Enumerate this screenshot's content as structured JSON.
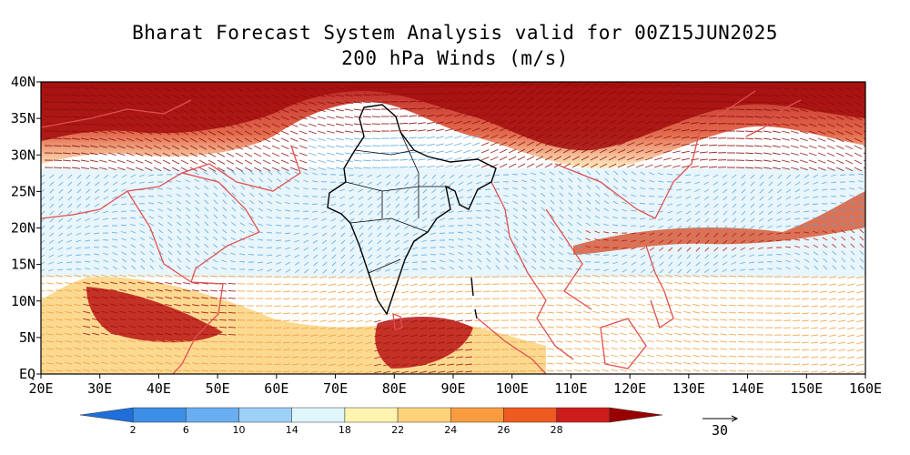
{
  "title": "Bharat Forecast System Analysis valid for 00Z15JUN2025",
  "subtitle": "200 hPa Winds (m/s)",
  "map": {
    "lon_range": [
      20,
      160
    ],
    "lat_range": [
      0,
      40
    ],
    "x_ticks": [
      "20E",
      "30E",
      "40E",
      "50E",
      "60E",
      "70E",
      "80E",
      "90E",
      "100E",
      "110E",
      "120E",
      "130E",
      "140E",
      "150E",
      "160E"
    ],
    "y_ticks": [
      "EQ",
      "5N",
      "10N",
      "15N",
      "20N",
      "25N",
      "30N",
      "35N",
      "40N"
    ]
  },
  "colorbar": {
    "levels": [
      "2",
      "6",
      "10",
      "14",
      "18",
      "22",
      "24",
      "26",
      "28"
    ],
    "colors": [
      "#1e6fd9",
      "#3c8ee6",
      "#69aef0",
      "#9dd0f7",
      "#dff6fb",
      "#fff3b0",
      "#ffd27a",
      "#f99b3f",
      "#ee5a1f",
      "#cc1c1c",
      "#990000"
    ]
  },
  "reference_vector": {
    "value": "30"
  },
  "colors": {
    "coast": "#e05050",
    "india": "#000000",
    "ocean_bg": "#ffffff"
  }
}
